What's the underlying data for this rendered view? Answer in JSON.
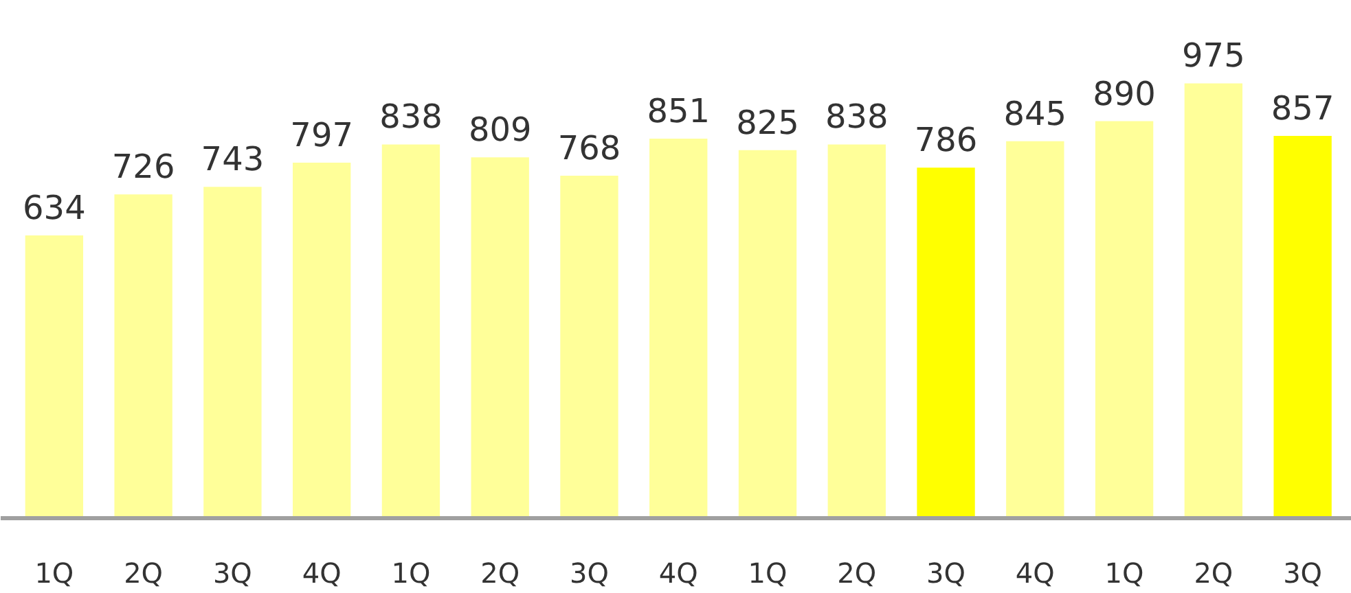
{
  "chart_data": {
    "type": "bar",
    "categories": [
      "1Q",
      "2Q",
      "3Q",
      "4Q",
      "1Q",
      "2Q",
      "3Q",
      "4Q",
      "1Q",
      "2Q",
      "3Q",
      "4Q",
      "1Q",
      "2Q",
      "3Q"
    ],
    "values": [
      634,
      726,
      743,
      797,
      838,
      809,
      768,
      851,
      825,
      838,
      786,
      845,
      890,
      975,
      857
    ],
    "colors": [
      "#ffff99",
      "#ffff99",
      "#ffff99",
      "#ffff99",
      "#ffff99",
      "#ffff99",
      "#ffff99",
      "#ffff99",
      "#ffff99",
      "#ffff99",
      "#ffff00",
      "#ffff99",
      "#ffff99",
      "#ffff99",
      "#ffff00"
    ],
    "data_labels": true
  }
}
